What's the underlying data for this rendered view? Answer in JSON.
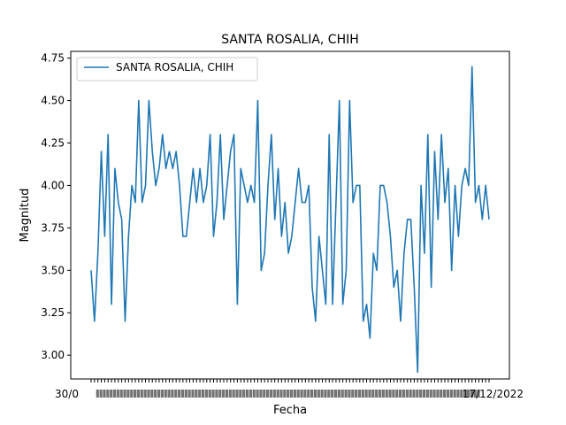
{
  "chart_data": {
    "type": "line",
    "title": "SANTA ROSALIA, CHIH",
    "xlabel": "Fecha",
    "ylabel": "Magnitud",
    "ylim": [
      2.86,
      4.79
    ],
    "yticks": [
      "3.00",
      "3.25",
      "3.50",
      "3.75",
      "4.00",
      "4.25",
      "4.50",
      "4.75"
    ],
    "xtick_labels_visible": [
      "30/0",
      "17/12/2022"
    ],
    "legend": {
      "position": "upper-left",
      "entries": [
        "SANTA ROSALIA, CHIH"
      ]
    },
    "series": [
      {
        "name": "SANTA ROSALIA, CHIH",
        "color": "#1f77b4",
        "values": [
          3.5,
          3.2,
          3.6,
          4.2,
          3.7,
          4.3,
          3.3,
          4.1,
          3.9,
          3.8,
          3.2,
          3.7,
          4.0,
          3.9,
          4.5,
          3.9,
          4.0,
          4.5,
          4.2,
          4.0,
          4.1,
          4.3,
          4.1,
          4.2,
          4.1,
          4.2,
          4.0,
          3.7,
          3.7,
          3.9,
          4.1,
          3.9,
          4.1,
          3.9,
          4.0,
          4.3,
          3.7,
          3.9,
          4.3,
          3.8,
          4.0,
          4.2,
          4.3,
          3.3,
          4.1,
          4.0,
          3.9,
          4.0,
          3.9,
          4.5,
          3.5,
          3.6,
          4.0,
          4.3,
          3.8,
          4.1,
          3.7,
          3.9,
          3.6,
          3.7,
          3.9,
          4.1,
          3.9,
          3.9,
          4.0,
          3.4,
          3.2,
          3.7,
          3.5,
          3.3,
          4.3,
          3.3,
          3.9,
          4.5,
          3.3,
          3.5,
          4.5,
          3.9,
          4.0,
          4.0,
          3.2,
          3.3,
          3.1,
          3.6,
          3.5,
          4.0,
          4.0,
          3.9,
          3.7,
          3.4,
          3.5,
          3.2,
          3.6,
          3.8,
          3.8,
          3.4,
          2.9,
          4.0,
          3.6,
          4.3,
          3.4,
          4.2,
          3.8,
          4.3,
          3.9,
          4.1,
          3.5,
          4.0,
          3.7,
          4.0,
          4.1,
          4.0,
          4.7,
          3.9,
          4.0,
          3.8,
          4.0,
          3.8
        ]
      }
    ]
  }
}
